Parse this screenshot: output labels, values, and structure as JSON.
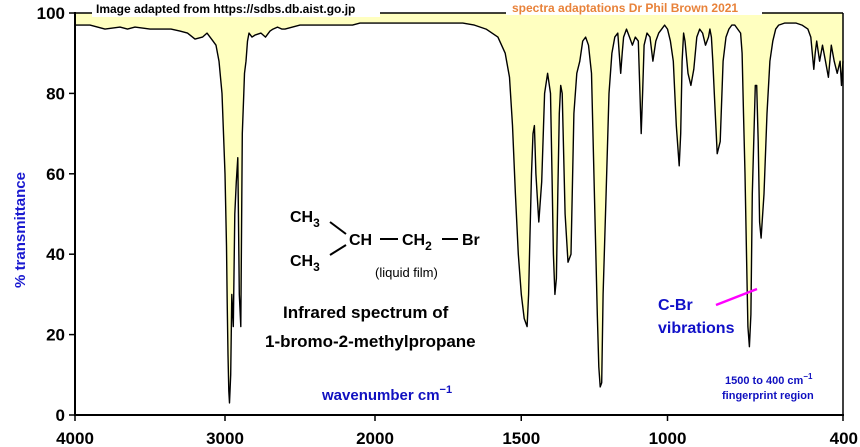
{
  "chart_data": {
    "type": "line",
    "ylabel": "% transmittance",
    "xlabel_text": "wavenumber  cm",
    "xlabel_sup": "−1",
    "xlim": [
      4000,
      400
    ],
    "ylim": [
      0,
      100
    ],
    "x_ticks": [
      "4000",
      "3000",
      "2000",
      "1500",
      "1000",
      "400"
    ],
    "y_ticks": [
      "0",
      "20",
      "40",
      "60",
      "80",
      "100"
    ],
    "fill_color": "#ffffc0",
    "line_color": "#000000",
    "series": [
      {
        "x": [
          4000,
          3900,
          3800,
          3700,
          3650,
          3600,
          3500,
          3420,
          3360,
          3300,
          3250,
          3200,
          3150,
          3120,
          3100,
          3080,
          3060,
          3040,
          3020,
          3000,
          2990,
          2985,
          2980,
          2975,
          2970,
          2962,
          2955,
          2945,
          2935,
          2925,
          2915,
          2905,
          2895,
          2885,
          2875,
          2870,
          2860,
          2850,
          2840,
          2820,
          2800,
          2760,
          2730,
          2700,
          2680,
          2650,
          2620,
          2600,
          2550,
          2500,
          2450,
          2400,
          2300,
          2200,
          2150,
          2100,
          2050,
          2000,
          1950,
          1900,
          1850,
          1800,
          1750,
          1700,
          1660,
          1620,
          1580,
          1555,
          1540,
          1530,
          1520,
          1510,
          1500,
          1490,
          1480,
          1475,
          1470,
          1465,
          1460,
          1455,
          1450,
          1440,
          1430,
          1420,
          1410,
          1400,
          1395,
          1390,
          1385,
          1380,
          1375,
          1370,
          1365,
          1360,
          1350,
          1340,
          1330,
          1320,
          1310,
          1300,
          1290,
          1280,
          1270,
          1260,
          1250,
          1240,
          1235,
          1230,
          1225,
          1220,
          1210,
          1200,
          1190,
          1180,
          1170,
          1165,
          1160,
          1155,
          1150,
          1140,
          1130,
          1120,
          1110,
          1100,
          1095,
          1090,
          1085,
          1080,
          1070,
          1060,
          1050,
          1040,
          1030,
          1020,
          1010,
          1000,
          990,
          980,
          970,
          960,
          955,
          950,
          945,
          940,
          930,
          920,
          910,
          900,
          890,
          880,
          870,
          860,
          855,
          850,
          845,
          840,
          830,
          820,
          810,
          800,
          790,
          780,
          770,
          760,
          750,
          745,
          740,
          735,
          730,
          725,
          720,
          715,
          710,
          700,
          695,
          690,
          685,
          680,
          670,
          660,
          650,
          640,
          630,
          620,
          600,
          580,
          560,
          540,
          520,
          510,
          505,
          500,
          495,
          490,
          480,
          470,
          460,
          450,
          440,
          430,
          420,
          410,
          405,
          400
        ],
        "y": [
          97,
          97,
          96,
          96.5,
          96,
          96.5,
          96,
          96,
          96,
          95.5,
          95,
          93.5,
          94,
          95,
          94,
          93,
          92,
          88,
          80,
          60,
          42,
          28,
          15,
          6,
          3,
          10,
          30,
          22,
          50,
          58,
          64,
          30,
          22,
          70,
          80,
          85,
          88,
          93,
          95,
          94,
          94.5,
          95,
          94,
          95.5,
          96,
          96.5,
          96,
          96,
          96.5,
          97,
          97,
          97,
          97,
          97,
          97,
          97.5,
          97.5,
          97.5,
          97.5,
          97.5,
          97.5,
          97.5,
          97.5,
          97.5,
          97,
          96,
          94,
          90,
          84,
          72,
          55,
          40,
          30,
          24,
          22,
          30,
          45,
          60,
          70,
          72,
          60,
          48,
          58,
          80,
          85,
          80,
          60,
          40,
          30,
          34,
          55,
          75,
          82,
          80,
          50,
          38,
          40,
          75,
          85,
          88,
          93,
          94,
          92,
          85,
          55,
          25,
          12,
          7,
          8,
          30,
          55,
          80,
          90,
          94,
          95,
          90,
          85,
          90,
          94,
          96,
          94,
          92,
          94,
          93,
          82,
          70,
          80,
          92,
          95,
          94,
          88,
          93,
          95,
          96,
          97,
          96,
          93,
          88,
          72,
          62,
          70,
          88,
          95,
          93,
          85,
          82,
          86,
          94,
          96,
          95,
          92,
          94,
          96,
          94,
          88,
          80,
          65,
          68,
          88,
          94,
          96,
          97,
          97,
          96,
          95,
          90,
          75,
          60,
          40,
          22,
          17,
          25,
          55,
          82,
          82,
          68,
          48,
          44,
          55,
          75,
          88,
          93,
          96,
          97,
          97.5,
          97.5,
          97.5,
          97,
          96,
          94,
          90,
          86,
          90,
          93,
          88,
          92,
          88,
          84,
          92,
          88,
          85,
          88,
          82,
          88
        ]
      }
    ]
  },
  "header": {
    "source_left": "Image adapted from https://sdbs.db.aist.go.jp",
    "source_right_a": "spectra adaptations Dr Phil Brown",
    "source_right_b": "2021"
  },
  "molecule": {
    "ch3_top": "CH",
    "ch3_top_sub": "3",
    "ch3_bottom": "CH",
    "ch3_bottom_sub": "3",
    "ch": "CH",
    "ch2": "CH",
    "ch2_sub": "2",
    "br": "Br",
    "phase": "(liquid film)"
  },
  "title": {
    "line1": "Infrared spectrum of",
    "line2": "1-bromo-2-methylpropane"
  },
  "annotation": {
    "line1": "C-Br",
    "line2": "vibrations",
    "arrow_color": "#ff00ff"
  },
  "fingerprint": {
    "line1_text": "1500 to 400 cm",
    "line1_sup": "−1",
    "line2": "fingerprint region"
  }
}
